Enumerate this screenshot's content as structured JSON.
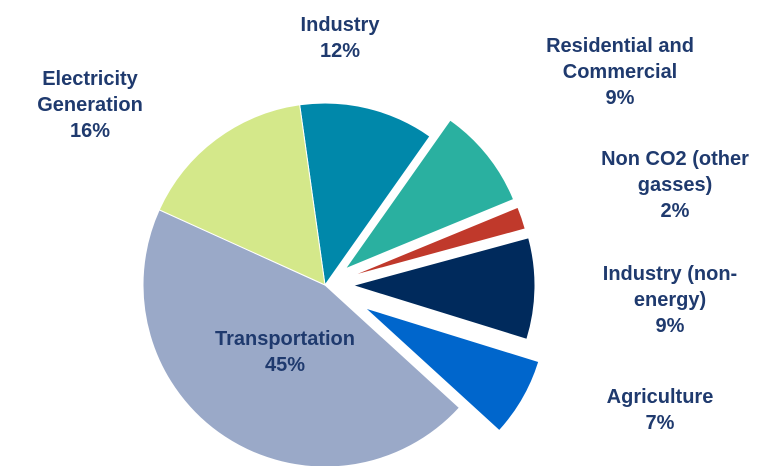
{
  "chart_data": {
    "type": "pie",
    "categories": [
      "Industry",
      "Residential and Commercial",
      "Non CO2 (other gasses)",
      "Industry (non-energy)",
      "Agriculture",
      "Transportation",
      "Electricity Generation"
    ],
    "values": [
      12,
      9,
      2,
      9,
      7,
      45,
      16
    ],
    "value_labels": [
      "12%",
      "9%",
      "2%",
      "9%",
      "7%",
      "45%",
      "16%"
    ],
    "colors": [
      "#0088aa",
      "#2ab0a0",
      "#c0392b",
      "#002a5c",
      "#0066cc",
      "#9aa9c8",
      "#d4e88a"
    ]
  }
}
